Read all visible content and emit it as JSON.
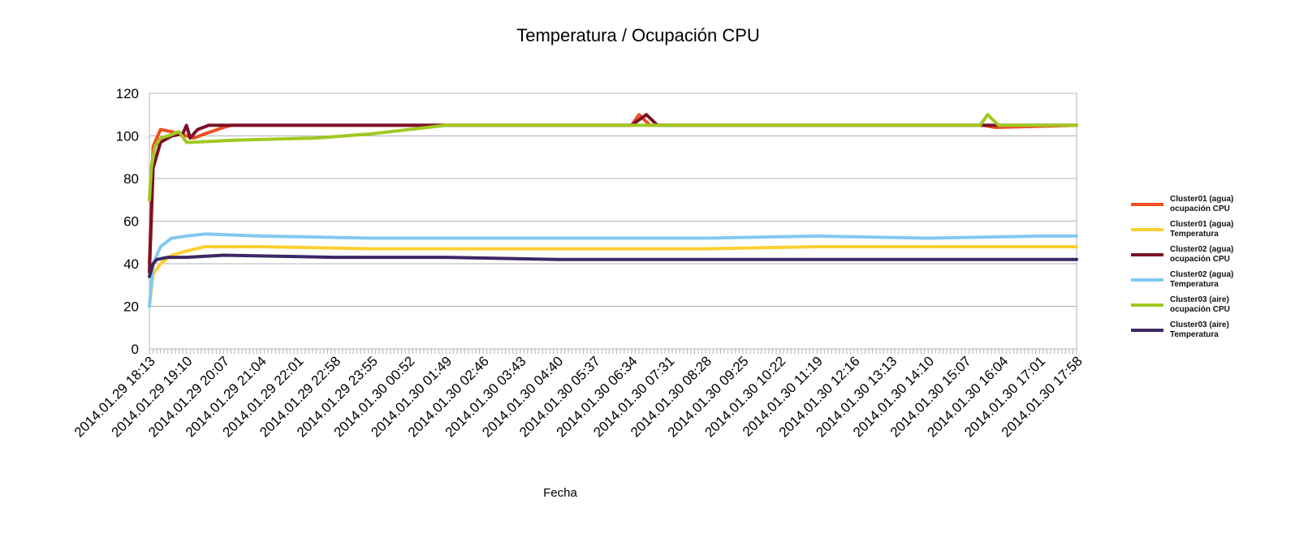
{
  "chart_data": {
    "type": "line",
    "title": "Temperatura / Ocupación CPU",
    "xlabel": "Fecha",
    "ylabel": "",
    "ylim": [
      0,
      120
    ],
    "yticks": [
      0,
      20,
      40,
      60,
      80,
      100,
      120
    ],
    "grid": true,
    "legend_position": "right",
    "x_tick_labels": [
      "2014.01.29 18:13",
      "2014.01.29 19:10",
      "2014.01.29 20:07",
      "2014.01.29 21:04",
      "2014.01.29 22:01",
      "2014.01.29 22:58",
      "2014.01.29 23:55",
      "2014.01.30 00:52",
      "2014.01.30 01:49",
      "2014.01.30 02:46",
      "2014.01.30 03:43",
      "2014.01.30 04:40",
      "2014.01.30 05:37",
      "2014.01.30 06:34",
      "2014.01.30 07:31",
      "2014.01.30 08:28",
      "2014.01.30 09:25",
      "2014.01.30 10:22",
      "2014.01.30 11:19",
      "2014.01.30 12:16",
      "2014.01.30 13:13",
      "2014.01.30 14:10",
      "2014.01.30 15:07",
      "2014.01.30 16:04",
      "2014.01.30 17:01",
      "2014.01.30 17:58"
    ],
    "series": [
      {
        "name": "Cluster01 (agua) ocupación CPU",
        "color": "#f04e23",
        "x": [
          0,
          0.1,
          0.3,
          0.6,
          1.2,
          1.5,
          2.0,
          2.2,
          2.4,
          3.0,
          5.0,
          8.0,
          13.0,
          13.2,
          13.5,
          22.5,
          22.8,
          25.0
        ],
        "y": [
          40,
          95,
          103,
          102,
          99,
          101,
          104,
          105,
          105,
          105,
          105,
          105,
          105,
          110,
          105,
          105,
          104,
          105
        ]
      },
      {
        "name": "Cluster01 (agua) Temperatura",
        "color": "#fcd033",
        "x": [
          0,
          0.1,
          0.3,
          0.6,
          1.0,
          1.5,
          3.0,
          6.0,
          9.0,
          12.0,
          15.0,
          18.0,
          21.0,
          24.0,
          25.0
        ],
        "y": [
          20,
          35,
          40,
          44,
          46,
          48,
          48,
          47,
          47,
          47,
          47,
          48,
          48,
          48,
          48
        ]
      },
      {
        "name": "Cluster02 (agua) ocupación CPU",
        "color": "#7b1128",
        "x": [
          0,
          0.1,
          0.3,
          0.6,
          0.9,
          1.0,
          1.1,
          1.3,
          1.6,
          2.0,
          8.0,
          13.0,
          13.4,
          13.7,
          25.0
        ],
        "y": [
          36,
          85,
          97,
          100,
          101,
          105,
          99,
          103,
          105,
          105,
          105,
          105,
          110,
          105,
          105
        ]
      },
      {
        "name": "Cluster02 (agua) Temperatura",
        "color": "#83c9f2",
        "x": [
          0,
          0.1,
          0.3,
          0.6,
          1.0,
          1.5,
          3.0,
          6.0,
          9.0,
          12.0,
          15.0,
          18.0,
          21.0,
          24.0,
          25.0
        ],
        "y": [
          20,
          40,
          48,
          52,
          53,
          54,
          53,
          52,
          52,
          52,
          52,
          53,
          52,
          53,
          53
        ]
      },
      {
        "name": "Cluster03 (aire) ocupación CPU",
        "color": "#a1c820",
        "x": [
          0,
          0.05,
          0.15,
          0.3,
          0.5,
          0.8,
          1.0,
          1.1,
          2.3,
          4.5,
          6.0,
          7.5,
          8.0,
          10.0,
          22.4,
          22.6,
          22.9,
          25.0
        ],
        "y": [
          70,
          85,
          95,
          99,
          100,
          102,
          97,
          97,
          98,
          99,
          101,
          104,
          105,
          105,
          105,
          110,
          105,
          105
        ]
      },
      {
        "name": "Cluster03 (aire) Temperatura",
        "color": "#3b2866",
        "x": [
          0,
          0.1,
          0.2,
          0.5,
          1.0,
          2.0,
          5.0,
          8.0,
          11.0,
          14.0,
          17.0,
          20.0,
          23.0,
          25.0
        ],
        "y": [
          34,
          40,
          42,
          43,
          43,
          44,
          43,
          43,
          42,
          42,
          42,
          42,
          42,
          42
        ]
      }
    ]
  }
}
